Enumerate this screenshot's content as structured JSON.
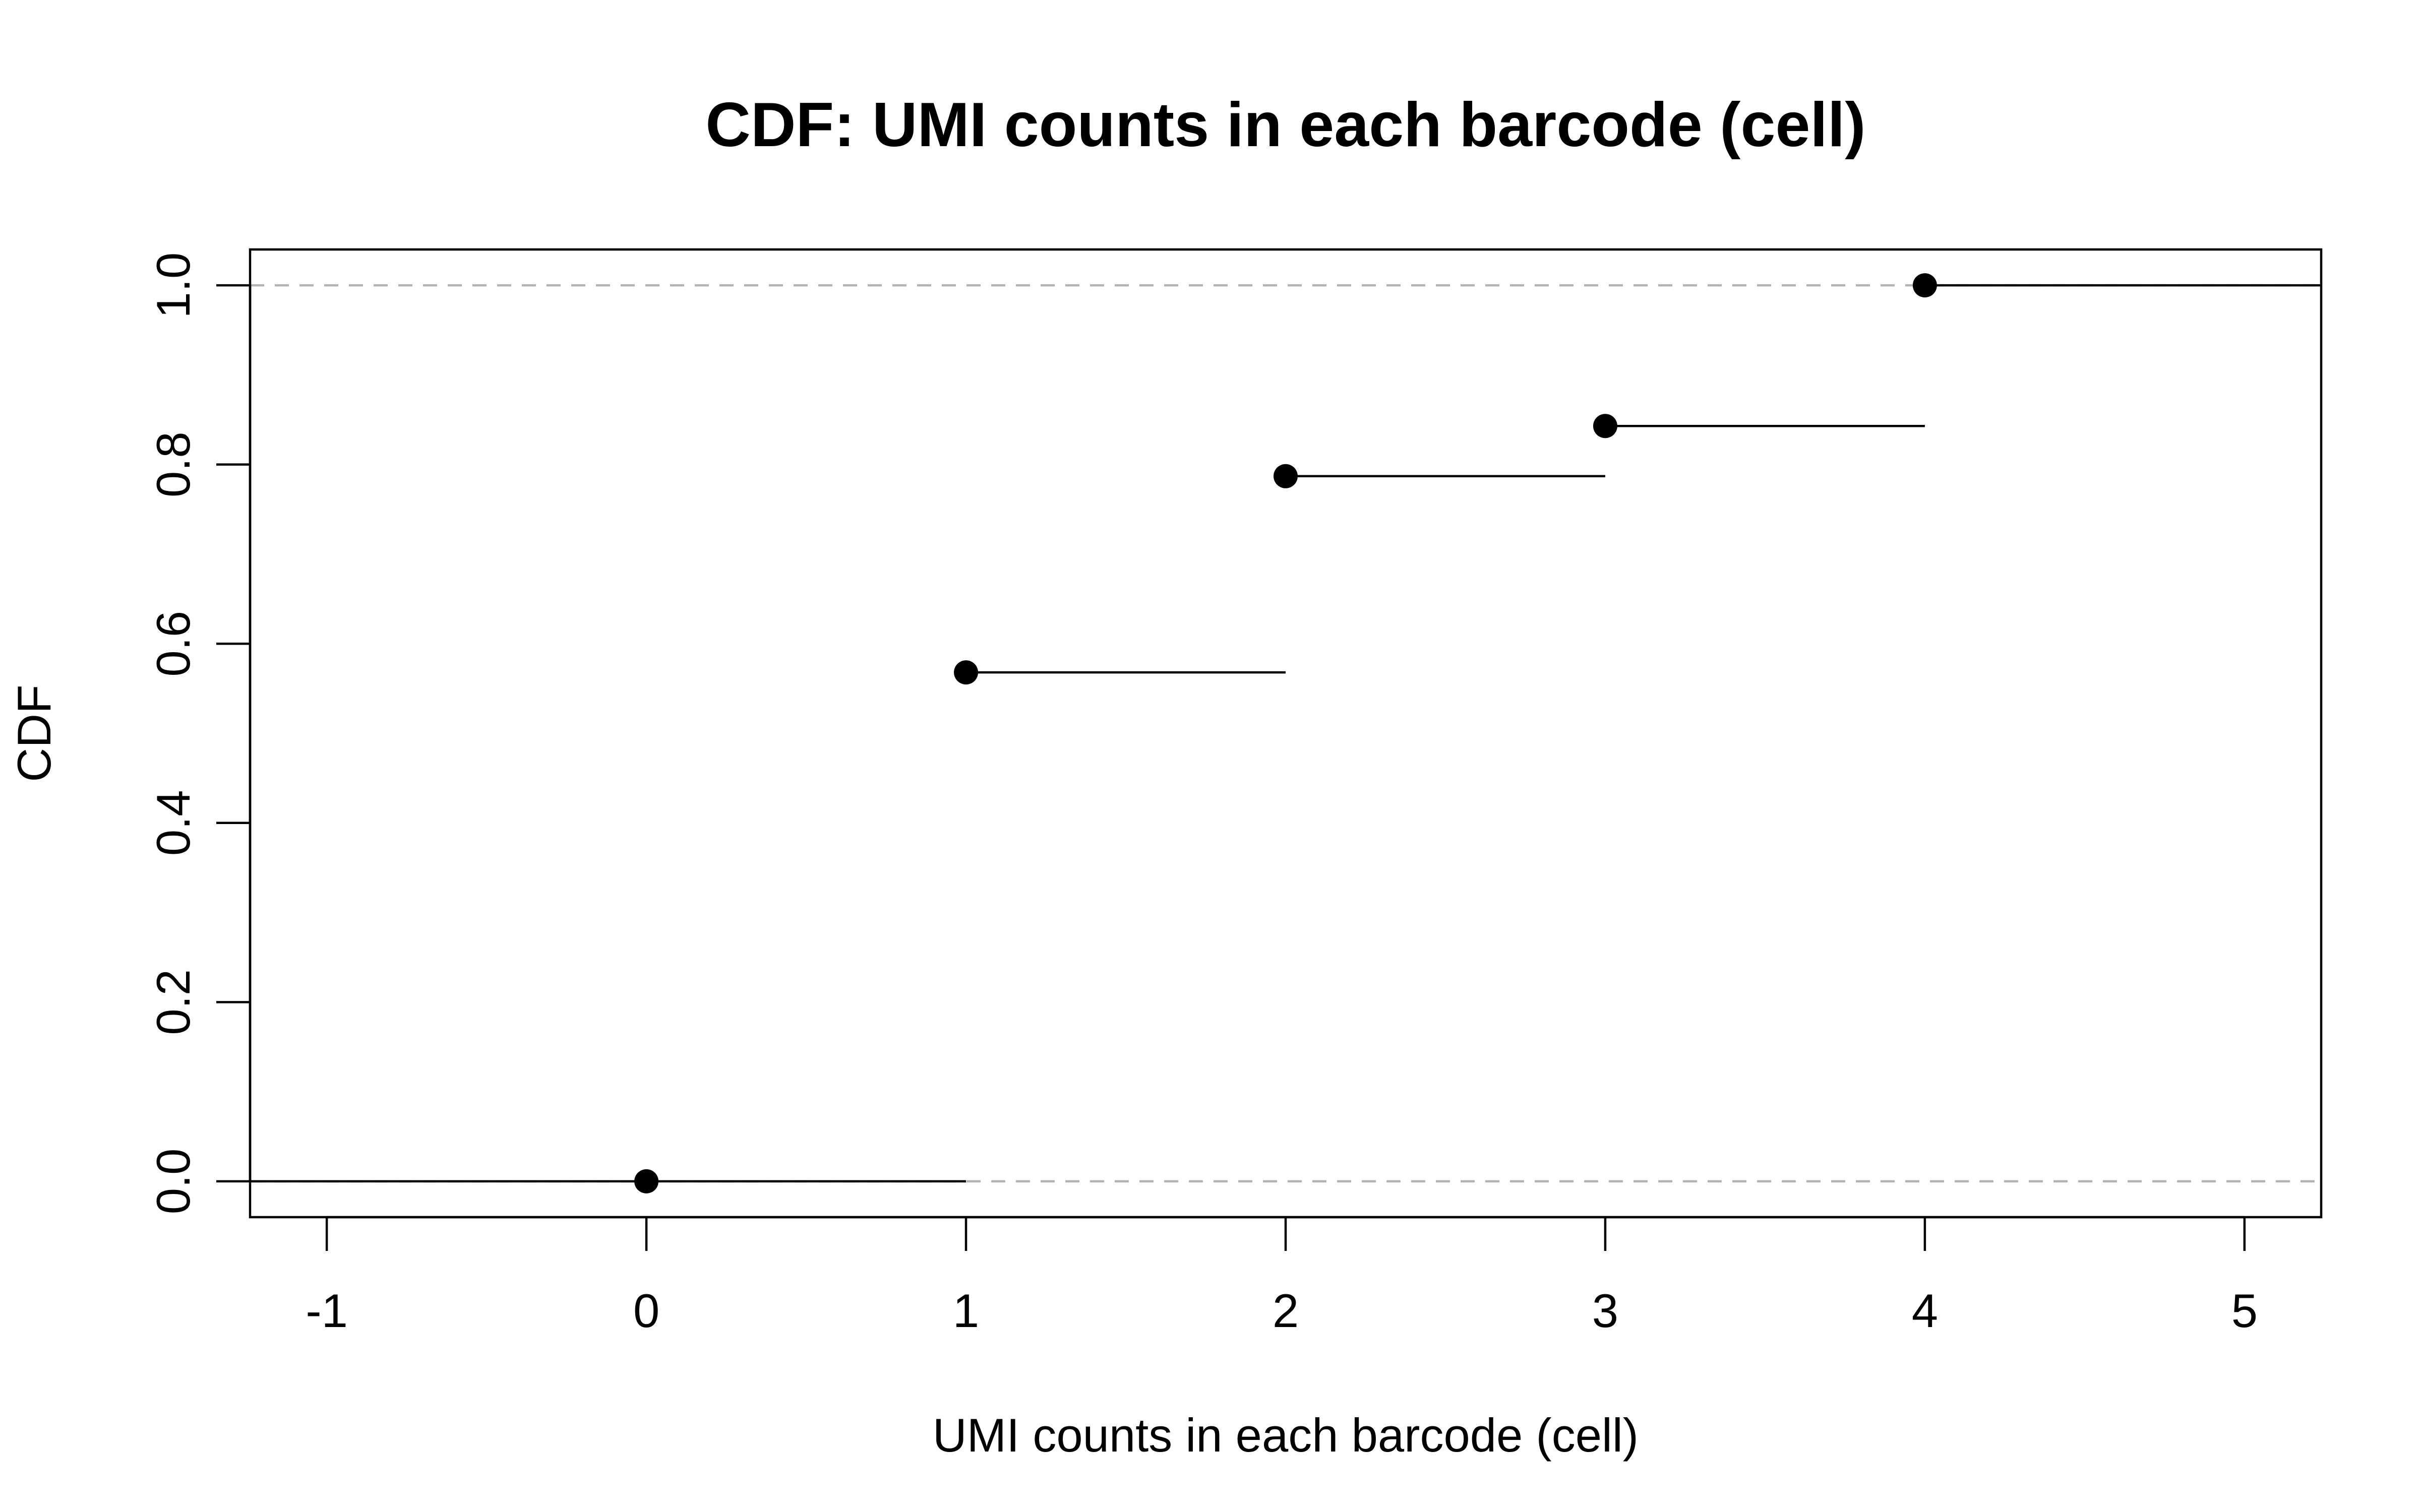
{
  "chart_data": {
    "type": "line",
    "subtype": "step-ecdf",
    "title": "CDF: UMI counts in each barcode (cell)",
    "xlabel": "UMI counts in each barcode (cell)",
    "ylabel": "CDF",
    "xlim": [
      -1.24,
      5.24
    ],
    "ylim": [
      -0.04,
      1.04
    ],
    "x_ticks": [
      -1,
      0,
      1,
      2,
      3,
      4,
      5
    ],
    "x_tick_labels": [
      "-1",
      "0",
      "1",
      "2",
      "3",
      "4",
      "5"
    ],
    "y_ticks": [
      0,
      0.2,
      0.4,
      0.6,
      0.8,
      1
    ],
    "y_tick_labels": [
      "0.0",
      "0.2",
      "0.4",
      "0.6",
      "0.8",
      "1.0"
    ],
    "reference_lines_y": [
      0,
      1
    ],
    "points": [
      {
        "x": 0,
        "y": 0
      },
      {
        "x": 1,
        "y": 0.568
      },
      {
        "x": 2,
        "y": 0.787
      },
      {
        "x": 3,
        "y": 0.843
      },
      {
        "x": 4,
        "y": 1
      }
    ],
    "grid": false,
    "colors": {
      "line": "#000000",
      "points": "#000000",
      "reference": "#b3b3b3"
    }
  }
}
